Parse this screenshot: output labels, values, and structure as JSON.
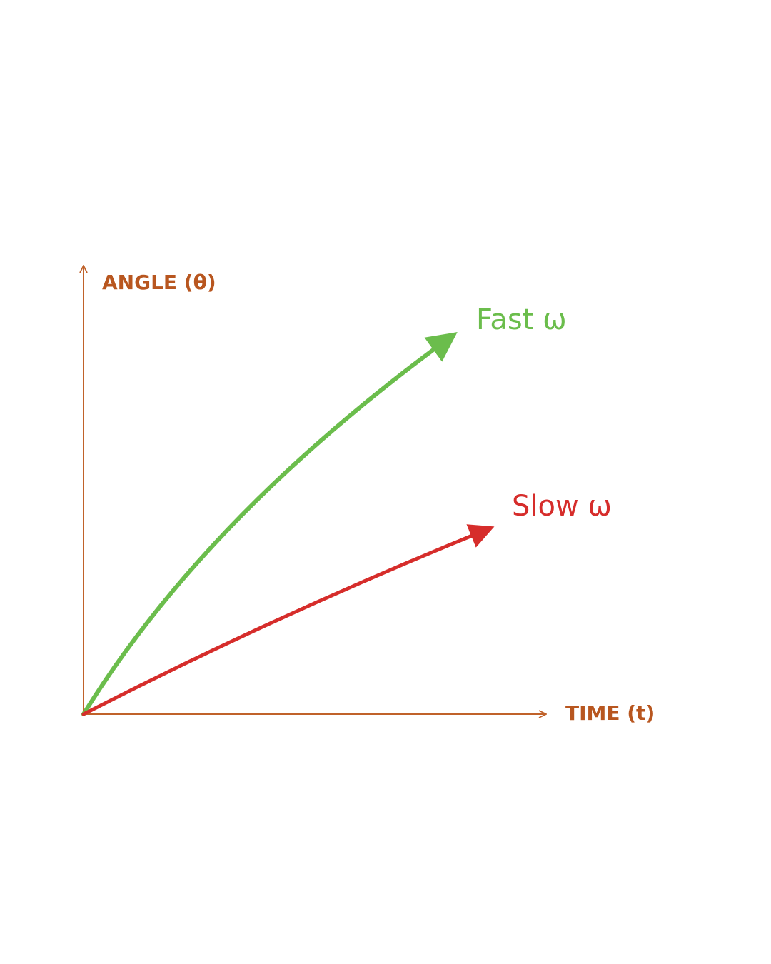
{
  "axes": {
    "y_label": "ANGLE (θ)",
    "x_label": "TIME (t)"
  },
  "curves": [
    {
      "label": "Fast ω"
    },
    {
      "label": "Slow ω"
    }
  ]
}
